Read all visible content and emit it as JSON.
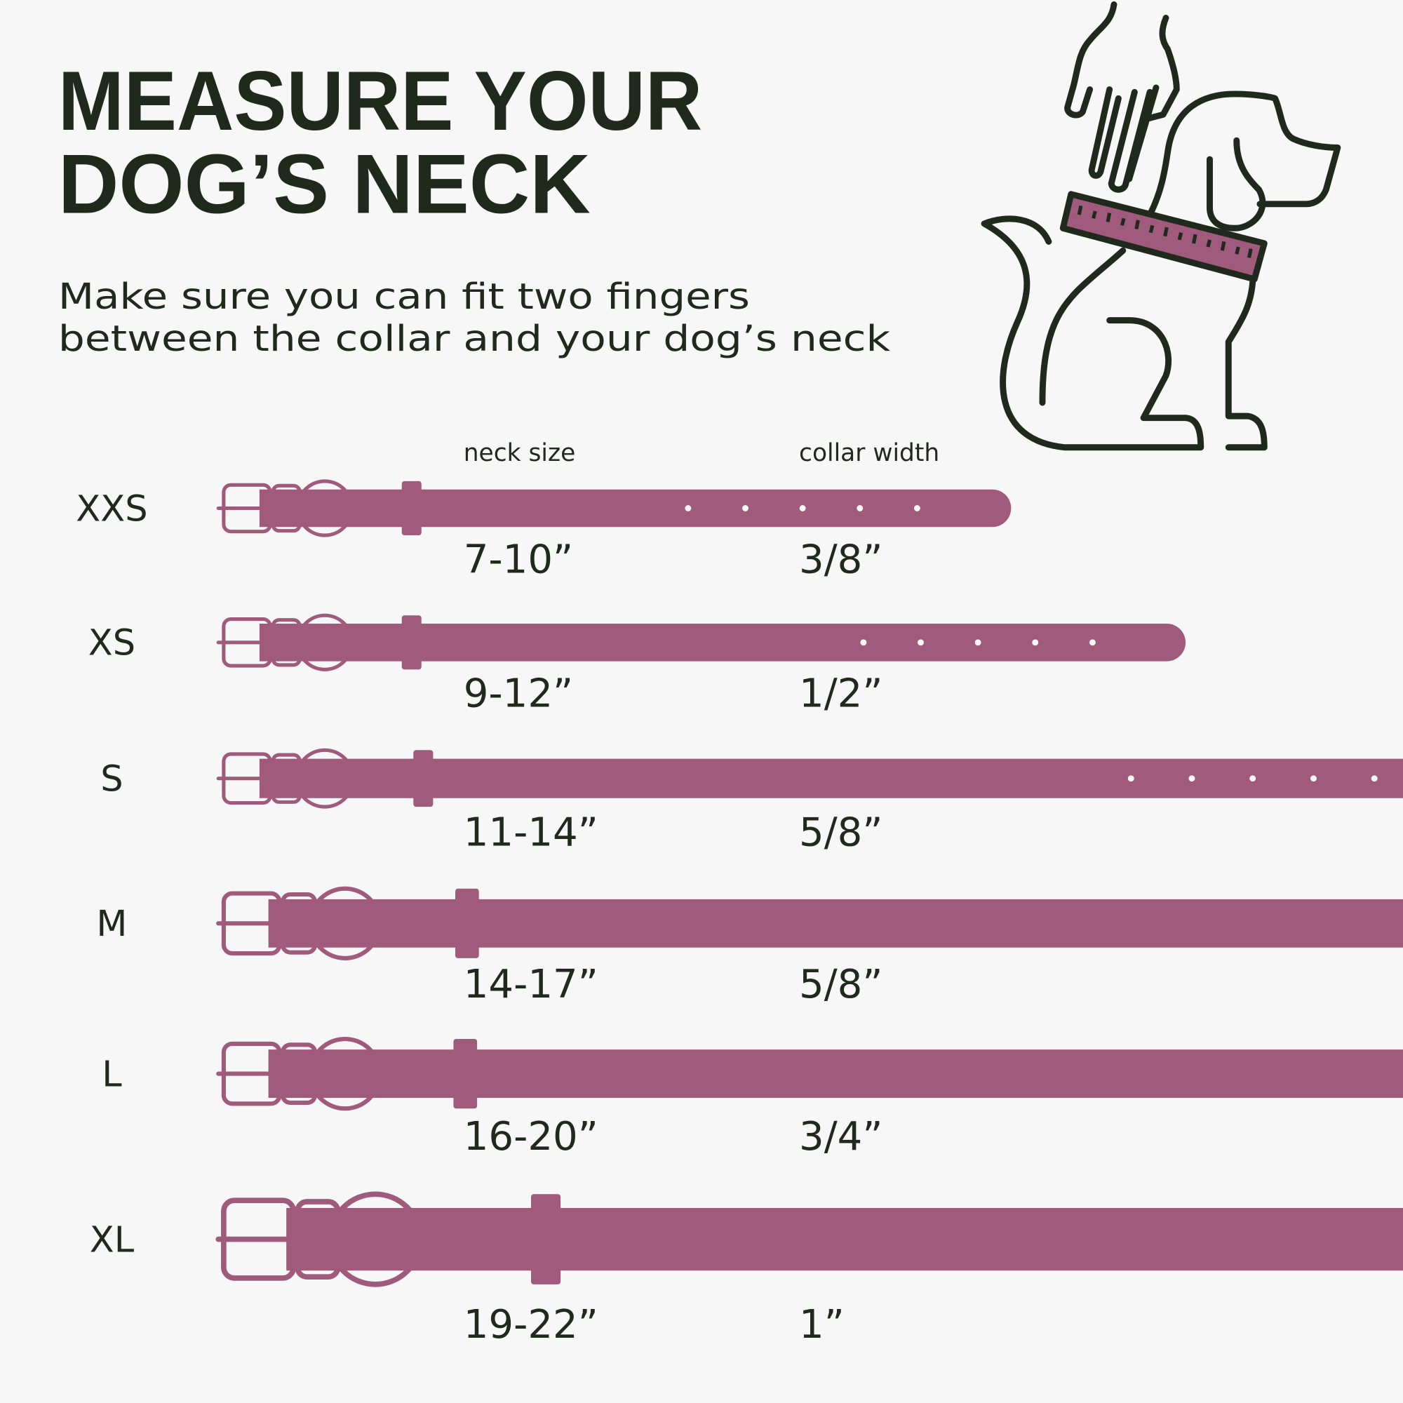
{
  "header": {
    "title": [
      "MEASURE YOUR",
      "DOG’S NECK"
    ],
    "subtitle": [
      "Make sure you can fit two fingers",
      "between the collar and your dog’s neck"
    ]
  },
  "columns": {
    "neck": "neck size",
    "width": "collar width"
  },
  "rows": [
    {
      "size": "XXS",
      "neck": "7-10”",
      "width": "3/8”"
    },
    {
      "size": "XS",
      "neck": "9-12”",
      "width": "1/2”"
    },
    {
      "size": "S",
      "neck": "11-14”",
      "width": "5/8”"
    },
    {
      "size": "M",
      "neck": "14-17”",
      "width": "5/8”"
    },
    {
      "size": "L",
      "neck": "16-20”",
      "width": "3/4”"
    },
    {
      "size": "XL",
      "neck": "19-22”",
      "width": "1”"
    }
  ]
}
